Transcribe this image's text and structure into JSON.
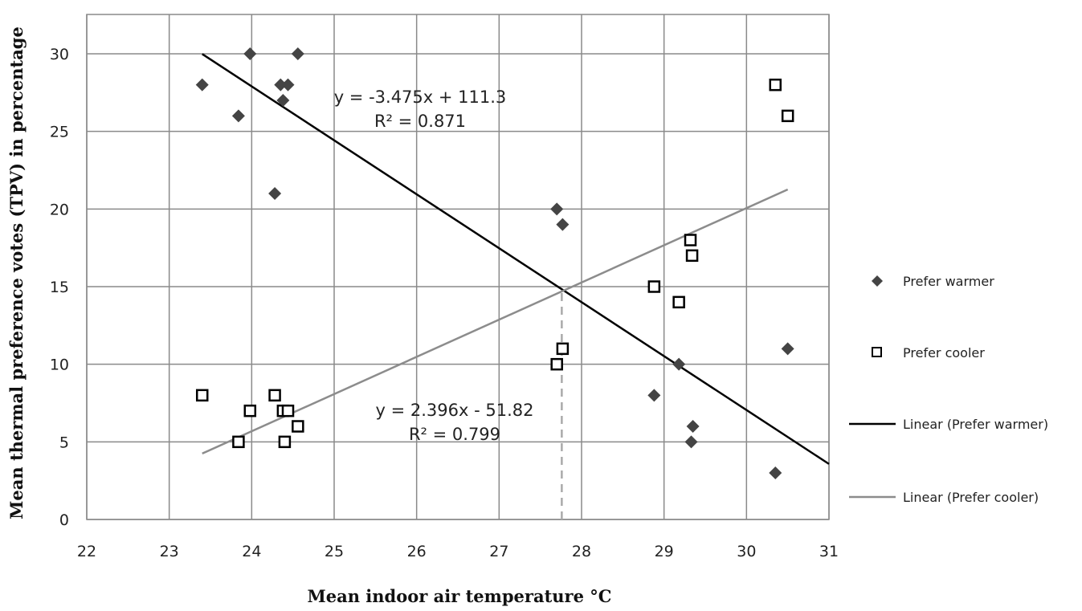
{
  "chart_data": {
    "type": "scatter",
    "xlabel": "Mean indoor air temperature °C",
    "ylabel": "Mean thermal preference votes (TPV) in percentage",
    "xlim": [
      22,
      31
    ],
    "ylim": [
      0,
      30
    ],
    "x_ticks": [
      "22",
      "23",
      "24",
      "25",
      "26",
      "27",
      "28",
      "29",
      "30",
      "31"
    ],
    "y_ticks": [
      "0",
      "5",
      "10",
      "15",
      "20",
      "25",
      "30"
    ],
    "grid": true,
    "legend_position": "right",
    "series": [
      {
        "name": "Prefer warmer",
        "marker": "diamond",
        "color": "#444444",
        "points": [
          [
            23.4,
            28
          ],
          [
            23.98,
            30
          ],
          [
            23.84,
            26
          ],
          [
            24.35,
            28
          ],
          [
            24.44,
            28
          ],
          [
            24.38,
            27
          ],
          [
            24.56,
            30
          ],
          [
            24.28,
            21
          ],
          [
            27.7,
            20
          ],
          [
            27.77,
            19
          ],
          [
            29.18,
            10
          ],
          [
            28.88,
            8
          ],
          [
            29.35,
            6
          ],
          [
            29.33,
            5
          ],
          [
            30.35,
            3
          ],
          [
            30.5,
            11
          ]
        ]
      },
      {
        "name": "Prefer cooler",
        "marker": "square",
        "color": "#000000",
        "points": [
          [
            23.4,
            8
          ],
          [
            23.98,
            7
          ],
          [
            23.84,
            5
          ],
          [
            24.28,
            8
          ],
          [
            24.38,
            7
          ],
          [
            24.44,
            7
          ],
          [
            24.56,
            6
          ],
          [
            24.4,
            5
          ],
          [
            27.7,
            10
          ],
          [
            27.77,
            11
          ],
          [
            28.88,
            15
          ],
          [
            29.18,
            14
          ],
          [
            29.32,
            18
          ],
          [
            29.34,
            17
          ],
          [
            30.35,
            28
          ],
          [
            30.5,
            26
          ]
        ]
      }
    ],
    "trendlines": [
      {
        "name": "Linear (Prefer warmer)",
        "color": "#000000",
        "slope": -3.475,
        "intercept": 111.3,
        "x_range": [
          23.4,
          31
        ],
        "equation": "y = -3.475x + 111.3",
        "r2": "R² = 0.871"
      },
      {
        "name": "Linear (Prefer cooler)",
        "color": "#8c8c8c",
        "slope": 2.396,
        "intercept": -51.82,
        "x_range": [
          23.4,
          30.5
        ],
        "equation": "y = 2.396x - 51.82",
        "r2": "R² = 0.799"
      }
    ],
    "reference_line": {
      "style": "dashed",
      "x": 27.76,
      "y_from": 0,
      "y_to": 14.8,
      "color": "#aaaaaa"
    }
  }
}
